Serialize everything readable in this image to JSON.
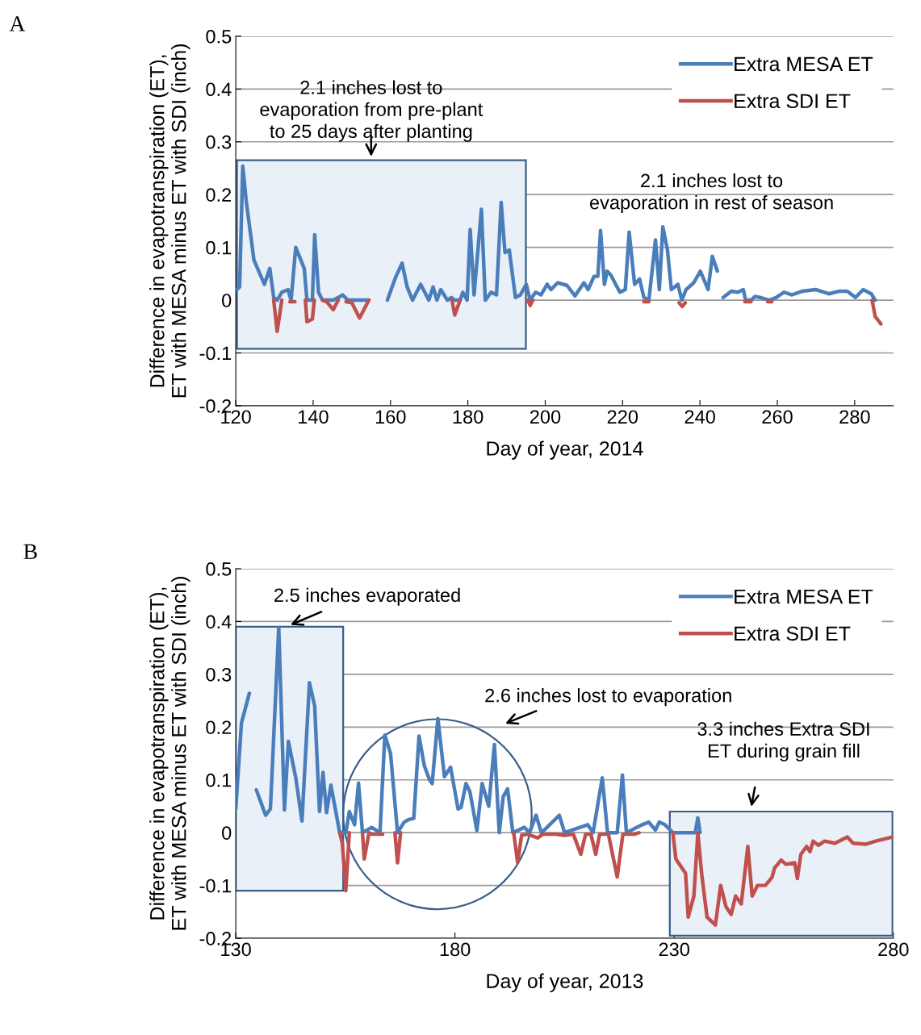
{
  "chart_data": [
    {
      "type": "line",
      "xlabel": "Day of year, 2014",
      "ylabel": "Difference in evapotranspiration (ET),\nET with MESA minus ET with SDI (inch)",
      "xlim": [
        120,
        290
      ],
      "xticks": [
        120,
        140,
        160,
        180,
        200,
        220,
        240,
        260,
        280
      ],
      "ylim": [
        -0.2,
        0.5
      ],
      "yticks": [
        -0.2,
        -0.1,
        0,
        0.1,
        0.2,
        0.3,
        0.4,
        0.5
      ],
      "grid": "y",
      "legend": "top right",
      "line_style": "solid",
      "annotations": [
        "A",
        "2.1 inches lost to\nevaporation from pre-plant\nto 25 days after planting",
        "2.1 inches lost to\nevaporation in rest of season"
      ],
      "series": [
        {
          "name": "Extra MESA ET",
          "color": "#4a7ebb",
          "x": [
            120.3,
            121,
            121.8,
            122.7,
            123.7,
            124.7,
            127.4,
            128.8,
            129.8,
            130.7,
            131.9,
            133.5,
            134.3,
            135.5,
            137.7,
            138.4,
            139.8,
            140.4,
            141.4,
            142.4,
            145.2,
            146.5,
            147.6,
            149,
            152,
            154.4,
            156,
            159.2,
            161.3,
            163,
            164.3,
            165.7,
            167.8,
            169.9,
            171,
            172,
            173,
            174.7,
            175.7,
            176.6,
            178,
            178.7,
            179.8,
            180.6,
            181.6,
            183.5,
            184.5,
            186,
            187.4,
            188.6,
            189.6,
            190.7,
            192.3,
            193.6,
            195.1,
            196.1,
            197.5,
            198.9,
            200.5,
            201.5,
            203.2,
            205.6,
            207.7,
            210,
            211.1,
            212.6,
            213.6,
            214.3,
            215.3,
            216,
            217,
            219.3,
            220.7,
            221.7,
            223.1,
            224.4,
            225.5,
            226.8,
            228.5,
            229.5,
            230.4,
            231.6,
            232.6,
            234.3,
            235.3,
            236.4,
            238.4,
            240.1,
            242.1,
            243.2,
            244.5,
            245.2,
            246,
            248.1,
            249.8,
            251.2,
            251.8,
            253.2,
            254.2,
            255.6,
            258,
            259.7,
            261.7,
            263.8,
            266.5,
            269.9,
            273.3,
            276.1,
            278.1,
            280.2,
            282.2,
            284.3,
            285.3
          ],
          "values": [
            0.02,
            0.025,
            0.254,
            0.188,
            0.132,
            0.076,
            0.03,
            0.06,
            0.005,
            0,
            0.015,
            0.02,
            0,
            0.1,
            0.06,
            0,
            0,
            0.124,
            0.015,
            0,
            0,
            0.005,
            0.01,
            0,
            0,
            0,
            null,
            0,
            0.043,
            0.07,
            0.025,
            0,
            0.03,
            0,
            0.025,
            0,
            0.02,
            0,
            0.005,
            0,
            0,
            0.015,
            0,
            0.134,
            0.01,
            0.172,
            0,
            0.015,
            0.01,
            0.185,
            0.09,
            0.095,
            0.005,
            0.01,
            0.03,
            0,
            0.015,
            0.01,
            0.03,
            0.02,
            0.033,
            0.028,
            0.008,
            0.033,
            0.02,
            0.045,
            0.045,
            0.132,
            0.03,
            0.055,
            0.047,
            0.015,
            0.02,
            0.129,
            0.03,
            0.04,
            0.005,
            0,
            0.114,
            0.02,
            0.139,
            0.095,
            0.02,
            0.03,
            0,
            0.02,
            0.033,
            0.055,
            0.02,
            0.083,
            0.055,
            null,
            0.005,
            0.017,
            0.015,
            0.02,
            0,
            0,
            0.007,
            0.005,
            0,
            0.005,
            0.015,
            0.01,
            0.017,
            0.02,
            0.012,
            0.017,
            0.017,
            0.005,
            0.02,
            0.012,
            0
          ]
        },
        {
          "name": "Extra SDI ET",
          "color": "#c0504d",
          "x": [
            129.8,
            130.7,
            131.9,
            132.5,
            134,
            135.3,
            136,
            138,
            138.4,
            139.8,
            140.3,
            141,
            142.4,
            143.5,
            145.2,
            146.5,
            147,
            148.5,
            150,
            152,
            154.4,
            165,
            175.9,
            176.6,
            178,
            190,
            195.5,
            196.1,
            196.8,
            210,
            225.5,
            226.8,
            230,
            234.6,
            235.4,
            236.2,
            240,
            251.6,
            253.2,
            255,
            257.5,
            258.6,
            270,
            284.5,
            285.3,
            286.8
          ],
          "values": [
            0,
            -0.059,
            0,
            null,
            -0.003,
            -0.003,
            null,
            0,
            -0.041,
            -0.036,
            0,
            null,
            0,
            -0.003,
            -0.018,
            0,
            null,
            -0.003,
            -0.005,
            -0.034,
            0,
            null,
            0,
            -0.028,
            0,
            null,
            0,
            -0.01,
            0,
            null,
            -0.003,
            -0.003,
            null,
            -0.005,
            -0.012,
            -0.005,
            null,
            -0.003,
            -0.003,
            null,
            -0.003,
            -0.003,
            null,
            0,
            -0.031,
            -0.045
          ]
        }
      ]
    },
    {
      "type": "line",
      "xlabel": "Day of year, 2013",
      "ylabel": "Difference in evapotranspiration (ET),\nET with MESA minus ET with SDI (inch)",
      "xlim": [
        130,
        280
      ],
      "xticks": [
        130,
        180,
        230,
        280
      ],
      "ylim": [
        -0.2,
        0.5
      ],
      "yticks": [
        -0.2,
        -0.1,
        0,
        0.1,
        0.2,
        0.3,
        0.4,
        0.5
      ],
      "grid": "y",
      "legend": "top right",
      "line_style": "solid",
      "annotations": [
        "B",
        "2.5 inches evaporated",
        "2.6 inches lost to evaporation",
        "3.3 inches Extra SDI\nET during grain fill"
      ],
      "series": [
        {
          "name": "Extra MESA ET",
          "color": "#4a7ebb",
          "x": [
            130,
            131.3,
            133.1,
            134,
            134.7,
            136.8,
            137.9,
            139.8,
            141.1,
            142,
            143.7,
            145.1,
            146.8,
            148,
            149.1,
            149.9,
            150.7,
            151.7,
            152.7,
            153.7,
            155.1,
            155.9,
            157.1,
            158,
            158.9,
            161,
            162.9,
            164,
            165.3,
            166.9,
            168.4,
            169.5,
            170.6,
            171.8,
            173,
            174.2,
            174.8,
            176.1,
            177.6,
            179,
            180.7,
            181.4,
            182.5,
            183.4,
            185,
            186.2,
            187.7,
            189,
            190.1,
            191,
            192,
            193.2,
            195.8,
            197,
            198.5,
            199.7,
            200.5,
            203.8,
            205,
            210.3,
            211.5,
            213.6,
            214.8,
            217,
            218.2,
            219.1,
            222.7,
            224.2,
            225.7,
            226.6,
            227.9,
            229.7,
            234.8,
            235.4,
            235.9
          ],
          "values": [
            0.045,
            0.208,
            0.264,
            null,
            0.081,
            0.033,
            0.045,
            0.389,
            0.043,
            0.173,
            0.103,
            0.022,
            0.284,
            0.24,
            0.04,
            0.114,
            0.038,
            0.09,
            0.045,
            0,
            0,
            0.04,
            0.015,
            0.094,
            0,
            0.01,
            0,
            0.185,
            0.15,
            0,
            0.02,
            0.025,
            0.027,
            0.183,
            0.127,
            0.1,
            0.093,
            0.216,
            0.106,
            0.124,
            0.045,
            0.048,
            0.093,
            0.078,
            0.004,
            0.093,
            0.05,
            0.167,
            0,
            0.068,
            0.083,
            0,
            0.01,
            0,
            0.033,
            0,
            0.006,
            0.033,
            0,
            0.015,
            0,
            0.104,
            0,
            0,
            0.109,
            0,
            0.015,
            0.02,
            0.005,
            0.02,
            0.015,
            0,
            0,
            0.028,
            0
          ]
        },
        {
          "name": "Extra SDI ET",
          "color": "#c0504d",
          "x": [
            153.7,
            154.3,
            155.1,
            155.9,
            156.5,
            158.9,
            159.3,
            160.4,
            161,
            163.5,
            164,
            166.3,
            166.9,
            167.6,
            180,
            193.4,
            194.3,
            195.2,
            196.5,
            198.9,
            200,
            203,
            205,
            207,
            208.7,
            209.8,
            211,
            212.1,
            213,
            215,
            217,
            218.3,
            220.9,
            222,
            226,
            229.7,
            230.4,
            232.6,
            233.2,
            234.5,
            235.4,
            236.3,
            237.5,
            239.4,
            240.6,
            241.8,
            243,
            244,
            245.3,
            246.8,
            247.8,
            249,
            250.8,
            252.3,
            252.9,
            254.4,
            255.5,
            257.5,
            258.1,
            258.9,
            260.2,
            261,
            261.7,
            262.9,
            264.3,
            266.7,
            269.5,
            270.8,
            273.6,
            276,
            279.9
          ],
          "values": [
            0,
            -0.02,
            -0.11,
            0,
            null,
            0,
            -0.05,
            0,
            -0.003,
            -0.003,
            null,
            0,
            -0.057,
            0,
            null,
            0,
            -0.057,
            -0.005,
            -0.003,
            -0.01,
            -0.003,
            -0.003,
            -0.005,
            -0.003,
            -0.041,
            -0.003,
            -0.003,
            -0.041,
            -0.003,
            -0.003,
            -0.084,
            -0.003,
            -0.003,
            0,
            null,
            0,
            -0.05,
            -0.077,
            -0.16,
            -0.12,
            0,
            -0.08,
            -0.16,
            -0.175,
            -0.1,
            -0.14,
            -0.155,
            -0.12,
            -0.135,
            -0.026,
            -0.12,
            -0.1,
            -0.1,
            -0.085,
            -0.067,
            -0.052,
            -0.06,
            -0.057,
            -0.087,
            -0.041,
            -0.026,
            -0.036,
            -0.016,
            -0.024,
            -0.016,
            -0.02,
            -0.008,
            -0.02,
            -0.022,
            -0.016,
            -0.008
          ]
        }
      ]
    }
  ]
}
